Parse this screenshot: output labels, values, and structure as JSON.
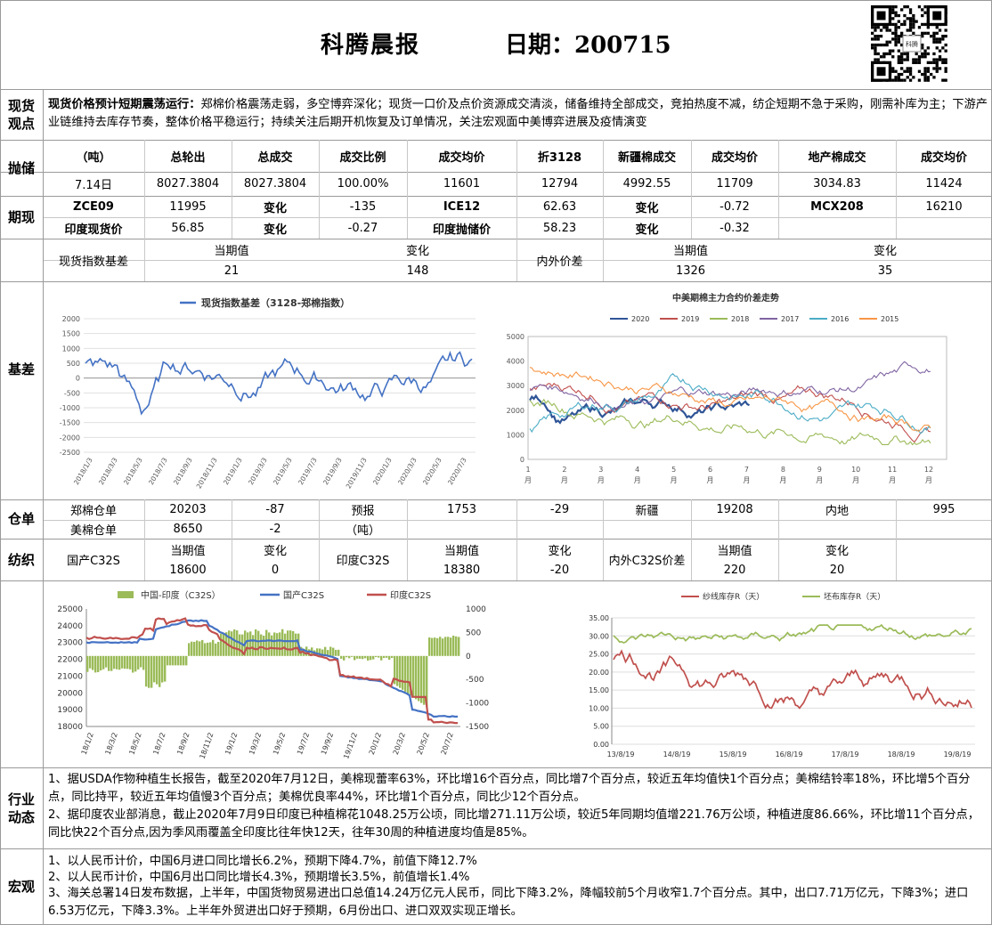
{
  "header": {
    "title": "科腾晨报",
    "date_label": "日期：200715",
    "qr_text": "科腾"
  },
  "spot": {
    "label": "现货观点",
    "headline": "现货价格预计短期震荡运行：",
    "text": "郑棉价格震荡走弱，多空博弈深化；现货一口价及点价资源成交清淡，储备维持全部成交，竞拍热度不减，纺企短期不急于采购，刚需补库为主；下游产业链维持去库存节奏，整体价格平稳运行；持续关注后期开机恢复及订单情况，关注宏观面中美博弈进展及疫情演变"
  },
  "reserve": {
    "label": "抛储",
    "headers": [
      "（吨）",
      "总轮出",
      "总成交",
      "成交比例",
      "成交均价",
      "折3128",
      "新疆棉成交",
      "成交均价",
      "地产棉成交",
      "成交均价"
    ],
    "row": [
      "7.14日",
      "8027.3804",
      "8027.3804",
      "100.00%",
      "11601",
      "12794",
      "4992.55",
      "11709",
      "3034.83",
      "11424"
    ]
  },
  "futures": {
    "label": "期现",
    "row1": [
      "ZCE09",
      "11995",
      "变化",
      "-135",
      "ICE12",
      "62.63",
      "变化",
      "-0.72",
      "MCX208",
      "16210"
    ],
    "row2": [
      "印度现货价",
      "56.85",
      "变化",
      "-0.27",
      "印度抛储价",
      "58.23",
      "变化",
      "-0.32"
    ]
  },
  "basis": {
    "label": "基差",
    "name": "现货指数基差",
    "cur_label": "当期值",
    "chg_label": "变化",
    "cur": "21",
    "chg": "148",
    "name2": "内外价差",
    "cur2": "1326",
    "chg2": "35"
  },
  "chart1": {
    "title": "现货指数基差（3128-郑棉指数）",
    "yticks": [
      "2000",
      "1500",
      "1000",
      "500",
      "0",
      "-500",
      "-1000",
      "-1500",
      "-2000",
      "-2500"
    ],
    "xticks": [
      "2018/1/3",
      "2018/3/3",
      "2018/5/3",
      "2018/7/3",
      "2018/9/3",
      "2018/11/3",
      "2019/1/3",
      "2019/3/3",
      "2019/5/3",
      "2019/7/3",
      "2019/9/3",
      "2019/11/3",
      "2020/1/3",
      "2020/3/3",
      "2020/5/3",
      "2020/7/3"
    ],
    "color": "#4472c4"
  },
  "chart2": {
    "title": "中美期棉主力合约价差走势",
    "legend": [
      "2020",
      "2019",
      "2018",
      "2017",
      "2016",
      "2015"
    ],
    "colors": [
      "#2f5597",
      "#c0504d",
      "#9bbb59",
      "#8064a2",
      "#4bacc6",
      "#f79646"
    ],
    "yticks": [
      "5000",
      "4000",
      "3000",
      "2000",
      "1000",
      "0"
    ],
    "months": [
      "1",
      "2",
      "3",
      "4",
      "5",
      "6",
      "7",
      "8",
      "9",
      "10",
      "11",
      "12"
    ],
    "month_unit": "月"
  },
  "warehouse": {
    "label": "仓单",
    "r1": [
      "郑棉仓单",
      "20203",
      "-87",
      "预报",
      "1753",
      "-29",
      "新疆",
      "19208",
      "内地",
      "995"
    ],
    "r2": [
      "美棉仓单",
      "8650",
      "-2",
      "（吨）"
    ]
  },
  "textile": {
    "label": "纺织",
    "cur_label": "当期值",
    "chg_label": "变化",
    "n1": "国产C32S",
    "v1": "18600",
    "c1": "0",
    "n2": "印度C32S",
    "v2": "18380",
    "c2": "-20",
    "n3": "内外C32S价差",
    "v3": "220",
    "c3": "20"
  },
  "chart3": {
    "legend": [
      "中国-印度（C32S）",
      "国产C32S",
      "印度C32S"
    ],
    "colors": [
      "#9bbb59",
      "#4472c4",
      "#c0504d"
    ],
    "yleft": [
      "25000",
      "24000",
      "23000",
      "22000",
      "21000",
      "20000",
      "19000",
      "18000"
    ],
    "yright": [
      "1000",
      "500",
      "0",
      "-500",
      "-1000",
      "-1500"
    ],
    "xticks": [
      "18/1/2",
      "18/3/2",
      "18/5/2",
      "18/7/2",
      "18/9/2",
      "18/11/2",
      "19/1/2",
      "19/3/2",
      "19/5/2",
      "19/7/2",
      "19/9/2",
      "19/11/2",
      "20/1/2",
      "20/3/2",
      "20/5/2",
      "20/7/2"
    ]
  },
  "chart4": {
    "legend": [
      "纱线库存R（天）",
      "坯布库存R（天）"
    ],
    "colors": [
      "#c0504d",
      "#9bbb59"
    ],
    "yticks": [
      "35.00",
      "30.00",
      "25.00",
      "20.00",
      "15.00",
      "10.00",
      "5.00",
      "0.00"
    ],
    "xticks": [
      "13/8/19",
      "14/8/19",
      "15/8/19",
      "16/8/19",
      "17/8/19",
      "18/8/19",
      "19/8/19"
    ]
  },
  "industry": {
    "label": "行业动态",
    "p1": "1、据USDA作物种植生长报告，截至2020年7月12日，美棉现蕾率63%，环比增16个百分点，同比增7个百分点，较近五年均值快1个百分点；美棉结铃率18%，环比增5个百分点，同比持平，较近五年均值慢3个百分点；美棉优良率44%，环比增1个百分点，同比少12个百分点。",
    "p2": "2、据印度农业部消息，截止2020年7月9日印度已种植棉花1048.25万公顷，同比增271.11万公顷，较近5年同期均值增221.76万公顷，种植进度86.66%，环比增11个百分点，同比快22个百分点,因为季风雨覆盖全印度比往年快12天，往年30周的种植进度均值是85%。"
  },
  "macro": {
    "label": "宏观",
    "p1": "1、以人民币计价，中国6月进口同比增长6.2%，预期下降4.7%，前值下降12.7%",
    "p2": "2、以人民币计价，中国6月出口同比增长4.3%，预期增长3.5%，前值增长1.4%",
    "p3": "3、海关总署14日发布数据，上半年，中国货物贸易进出口总值14.24万亿元人民币，同比下降3.2%，降幅较前5个月收窄1.7个百分点。其中，出口7.71万亿元，下降3%；进口6.53万亿元，下降3.3%。上半年外贸进出口好于预期，6月份出口、进口双双实现正增长。"
  }
}
